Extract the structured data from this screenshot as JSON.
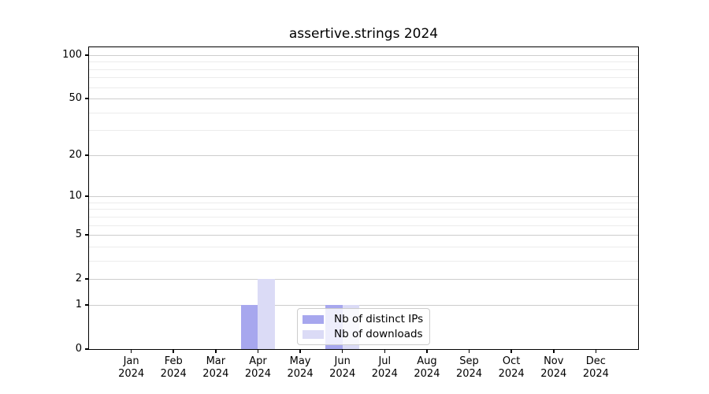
{
  "title": "assertive.strings 2024",
  "colors": {
    "distinct_ips": "#a7a7ee",
    "downloads": "#dbdbf6",
    "grid_major": "#cdcdcd",
    "grid_minor": "#ececec",
    "spine": "#000000",
    "text": "#000000",
    "legend_border": "#cccccc"
  },
  "chart_data": {
    "type": "bar",
    "title": "assertive.strings 2024",
    "categories": [
      "Jan 2024",
      "Feb 2024",
      "Mar 2024",
      "Apr 2024",
      "May 2024",
      "Jun 2024",
      "Jul 2024",
      "Aug 2024",
      "Sep 2024",
      "Oct 2024",
      "Nov 2024",
      "Dec 2024"
    ],
    "series": [
      {
        "name": "Nb of distinct IPs",
        "color": "#a7a7ee",
        "values": [
          0,
          0,
          0,
          1,
          0,
          1,
          0,
          0,
          0,
          0,
          0,
          0
        ]
      },
      {
        "name": "Nb of downloads",
        "color": "#dbdbf6",
        "values": [
          0,
          0,
          0,
          2,
          0,
          1,
          0,
          0,
          0,
          0,
          0,
          0
        ]
      }
    ],
    "yscale": "log1p",
    "ylim": [
      0,
      113
    ],
    "yticks": [
      0,
      1,
      2,
      5,
      10,
      20,
      50,
      100
    ],
    "yticks_minor": [
      3,
      4,
      6,
      7,
      8,
      9,
      30,
      40,
      60,
      70,
      80,
      90
    ],
    "grid": "on",
    "legend_position": "lower center-right inside plot"
  }
}
